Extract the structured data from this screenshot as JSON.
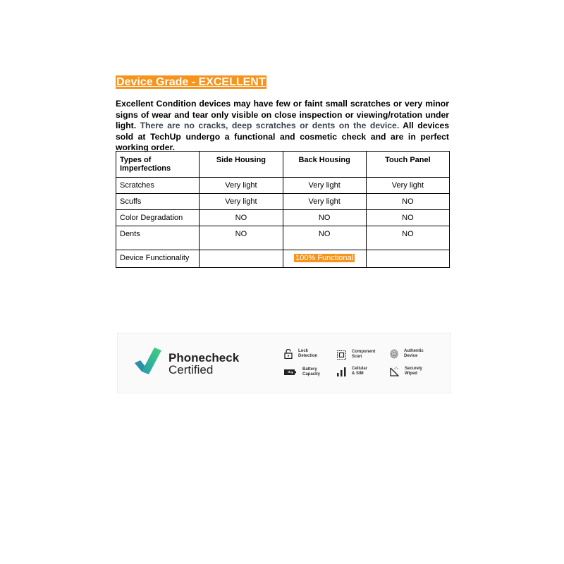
{
  "title": "Device Grade - EXCELLENT",
  "description": {
    "part1": "Excellent Condition devices may have few or faint small scratches or very minor signs of wear and tear only visible on close inspection or viewing/rotation under light.",
    "part2": "There are no cracks, deep scratches or dents on the device.",
    "part3": "All devices sold at TechUp undergo a functional and cosmetic check and are in perfect working order."
  },
  "table": {
    "headers": [
      "Types of Imperfections",
      "Side Housing",
      "Back Housing",
      "Touch Panel"
    ],
    "rows": [
      [
        "Scratches",
        "Very light",
        "Very light",
        "Very light"
      ],
      [
        "Scuffs",
        "Very light",
        "Very light",
        "NO"
      ],
      [
        "Color Degradation",
        "NO",
        "NO",
        "NO"
      ],
      [
        "Dents",
        "NO",
        "NO",
        "NO"
      ]
    ],
    "functionality": {
      "label": "Device Functionality",
      "value": "100% Functional"
    }
  },
  "banner": {
    "brand": "Phonecheck",
    "sub": "Certified",
    "features": [
      {
        "l1": "Lock",
        "l2": "Detection",
        "icon": "lock-icon"
      },
      {
        "l1": "Component",
        "l2": "Scan",
        "icon": "chip-icon"
      },
      {
        "l1": "Authentic",
        "l2": "Device",
        "icon": "fingerprint-icon"
      },
      {
        "l1": "Battery",
        "l2": "Capacity",
        "icon": "battery-icon"
      },
      {
        "l1": "Cellular",
        "l2": "& SIM",
        "icon": "signal-icon"
      },
      {
        "l1": "Securely",
        "l2": "Wiped",
        "icon": "wipe-icon"
      }
    ]
  },
  "colors": {
    "accent": "#f7941d"
  }
}
